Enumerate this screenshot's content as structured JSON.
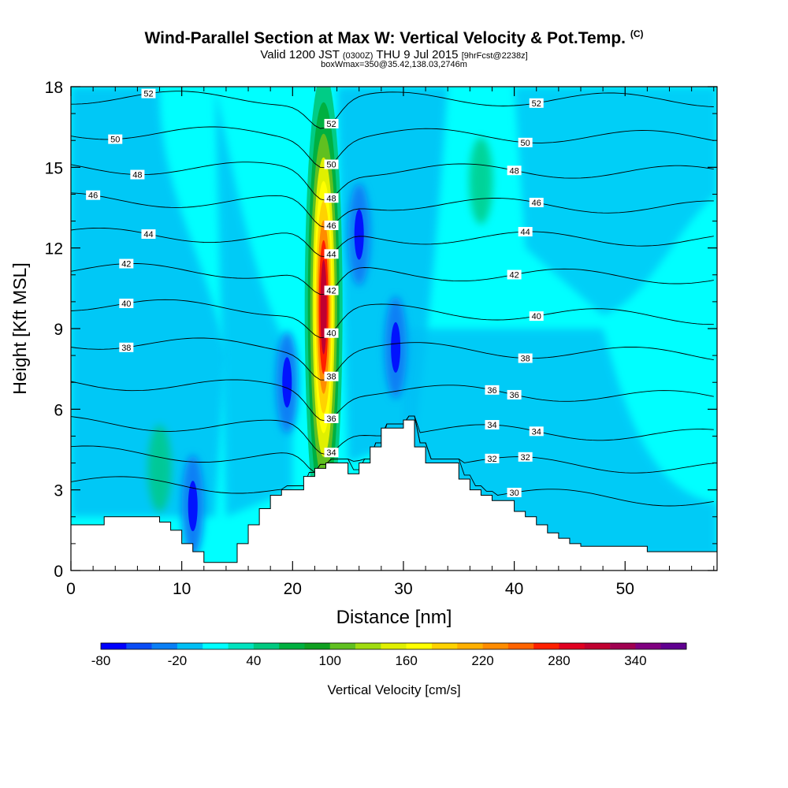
{
  "title": {
    "main": "Wind-Parallel Section at Max W: Vertical Velocity & Pot.Temp.",
    "main_mark": "(C)",
    "valid_a": "Valid 1200 JST",
    "valid_b": "(0300Z)",
    "valid_c": "THU 9 Jul 2015",
    "valid_d": "[9hrFcst@2238z]",
    "box": "boxWmax=350@35.42,138.03,2746m"
  },
  "chart_data": {
    "type": "heatmap",
    "xlabel": "Distance [nm]",
    "ylabel": "Height [Kft MSL]",
    "xlim": [
      0,
      58.3
    ],
    "ylim": [
      0,
      18
    ],
    "x_ticks": [
      "0",
      "10",
      "20",
      "30",
      "40",
      "50"
    ],
    "y_ticks": [
      "0",
      "3",
      "6",
      "9",
      "12",
      "15",
      "18"
    ],
    "colorbar": {
      "label": "Vertical Velocity [cm/s]",
      "tick_labels": [
        "-80",
        "-20",
        "40",
        "100",
        "160",
        "220",
        "280",
        "340"
      ],
      "colors": [
        "#0000ff",
        "#0a4cf5",
        "#0a7ff5",
        "#00bff5",
        "#00ffff",
        "#00e3bf",
        "#00c980",
        "#00b040",
        "#10a020",
        "#60c020",
        "#a0dc10",
        "#e0f000",
        "#ffff00",
        "#ffd200",
        "#ffb000",
        "#ff8c00",
        "#ff6400",
        "#ff2000",
        "#e00020",
        "#c00030",
        "#a00050",
        "#800080",
        "#600090"
      ]
    },
    "background_color": "#00ffff",
    "terrain": [
      [
        0,
        1.7
      ],
      [
        2,
        1.7
      ],
      [
        3,
        2.0
      ],
      [
        7,
        2.0
      ],
      [
        8,
        1.8
      ],
      [
        9,
        1.5
      ],
      [
        10,
        1.0
      ],
      [
        11,
        0.7
      ],
      [
        12,
        0.3
      ],
      [
        14,
        0.3
      ],
      [
        15,
        1.0
      ],
      [
        16,
        1.7
      ],
      [
        17,
        2.3
      ],
      [
        18,
        2.8
      ],
      [
        19,
        3.0
      ],
      [
        21,
        3.5
      ],
      [
        22,
        3.8
      ],
      [
        23,
        4.0
      ],
      [
        25,
        3.6
      ],
      [
        26,
        4.0
      ],
      [
        27,
        4.6
      ],
      [
        28,
        5.3
      ],
      [
        30,
        5.6
      ],
      [
        31,
        4.6
      ],
      [
        32,
        4.0
      ],
      [
        35,
        3.4
      ],
      [
        36,
        3.0
      ],
      [
        37,
        2.8
      ],
      [
        38,
        2.6
      ],
      [
        40,
        2.2
      ],
      [
        41,
        2.0
      ],
      [
        42,
        1.7
      ],
      [
        43,
        1.4
      ],
      [
        44,
        1.2
      ],
      [
        45,
        1.0
      ],
      [
        46,
        0.9
      ],
      [
        52,
        0.7
      ],
      [
        58.3,
        0.7
      ]
    ],
    "updraft_core": {
      "x": 22.8,
      "peak_cm_s": 350,
      "peak_height": 9.8
    },
    "downdrafts": [
      [
        19.5,
        7.0
      ],
      [
        29.3,
        8.3
      ],
      [
        26,
        12.5
      ],
      [
        11,
        2.4
      ]
    ],
    "minor_updrafts": [
      [
        8,
        3.8
      ],
      [
        37,
        14.5
      ]
    ],
    "isentropes": [
      {
        "label": "30",
        "y0": 3.3,
        "y1": 2.6
      },
      {
        "label": "32",
        "y0": 4.4,
        "y1": 3.8
      },
      {
        "label": "34",
        "y0": 5.5,
        "y1": 5.0
      },
      {
        "label": "36",
        "y0": 7.0,
        "y1": 6.4
      },
      {
        "label": "38",
        "y0": 8.5,
        "y1": 8.0
      },
      {
        "label": "40",
        "y0": 9.9,
        "y1": 9.4
      },
      {
        "label": "42",
        "y0": 11.2,
        "y1": 10.9
      },
      {
        "label": "44",
        "y0": 12.5,
        "y1": 12.3
      },
      {
        "label": "46",
        "y0": 13.8,
        "y1": 13.5
      },
      {
        "label": "48",
        "y0": 15.0,
        "y1": 14.8
      },
      {
        "label": "50",
        "y0": 16.3,
        "y1": 16.1
      },
      {
        "label": "52",
        "y0": 17.6,
        "y1": 17.5
      }
    ]
  }
}
